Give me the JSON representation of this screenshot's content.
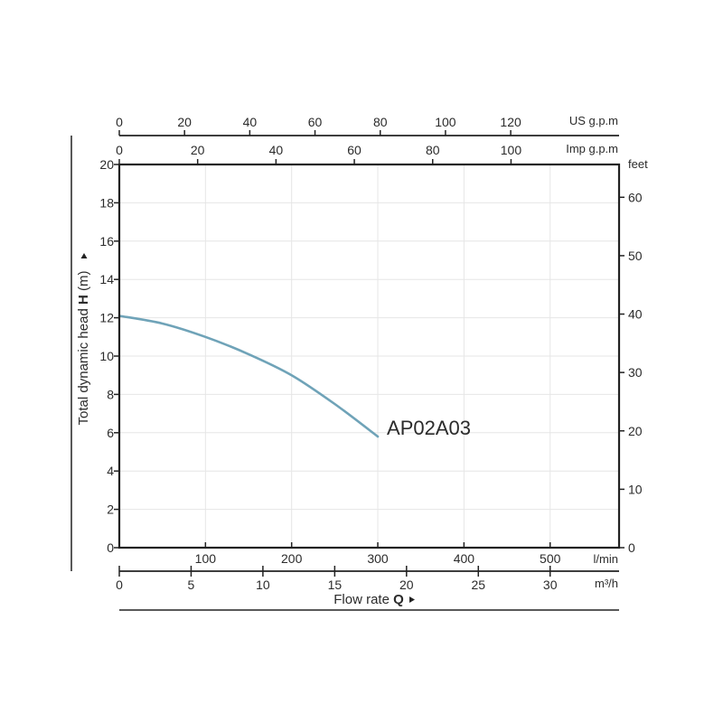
{
  "chart_data": {
    "type": "line",
    "title": "",
    "xlabel": "Flow rate",
    "xlabel_symbol": "Q",
    "ylabel": "Total dynamic head",
    "ylabel_symbol": "H",
    "ylabel_unit": "(m)",
    "xlim": [
      0,
      580
    ],
    "ylim": [
      0,
      20
    ],
    "grid": true,
    "axes": {
      "x_lmin": {
        "unit": "l/min",
        "ticks": [
          0,
          100,
          200,
          300,
          400,
          500
        ]
      },
      "x_m3h": {
        "unit": "m³/h",
        "ticks": [
          0,
          5,
          10,
          15,
          20,
          25,
          30
        ]
      },
      "x_usgpm": {
        "unit": "US g.p.m",
        "ticks": [
          0,
          20,
          40,
          60,
          80,
          100,
          120
        ]
      },
      "x_impgpm": {
        "unit": "Imp g.p.m",
        "ticks": [
          0,
          20,
          40,
          60,
          80,
          100
        ]
      },
      "y_m": {
        "unit": "m",
        "ticks": [
          0,
          2,
          4,
          6,
          8,
          10,
          12,
          14,
          16,
          18,
          20
        ]
      },
      "y_feet": {
        "unit": "feet",
        "ticks": [
          0,
          10,
          20,
          30,
          40,
          50,
          60
        ]
      }
    },
    "series": [
      {
        "name": "AP02A03",
        "color": "#6fa3b8",
        "x": [
          0,
          50,
          100,
          150,
          200,
          250,
          300
        ],
        "y": [
          12.1,
          11.7,
          11.0,
          10.1,
          9.0,
          7.5,
          5.8
        ]
      }
    ]
  }
}
